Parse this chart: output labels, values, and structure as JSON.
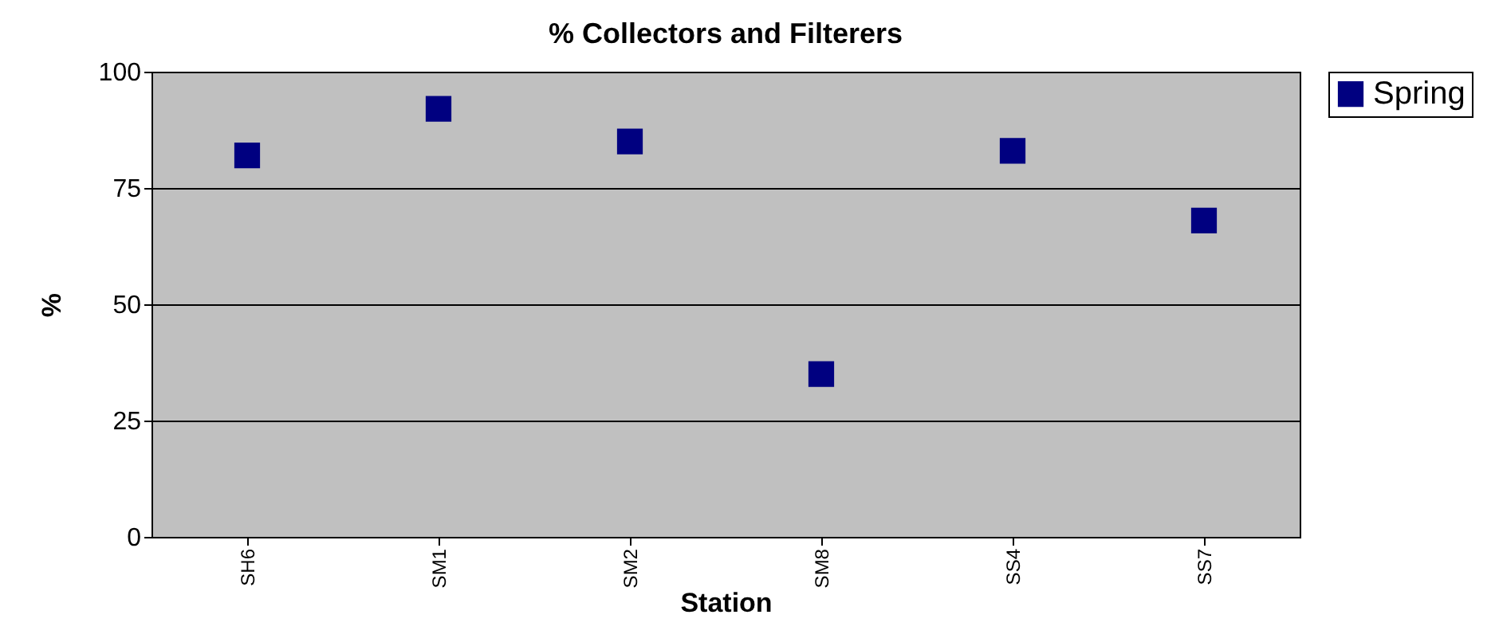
{
  "chart_data": {
    "type": "scatter",
    "title": "% Collectors and Filterers",
    "xlabel": "Station",
    "ylabel": "%",
    "categories": [
      "SH6",
      "SM1",
      "SM2",
      "SM8",
      "SS4",
      "SS7"
    ],
    "series": [
      {
        "name": "Spring",
        "color": "#000080",
        "values": [
          82,
          92,
          85,
          35,
          83,
          68
        ]
      }
    ],
    "ylim": [
      0,
      100
    ],
    "yticks": [
      0,
      25,
      50,
      75,
      100
    ],
    "grid": "y",
    "legend": "right",
    "marker": "square"
  }
}
